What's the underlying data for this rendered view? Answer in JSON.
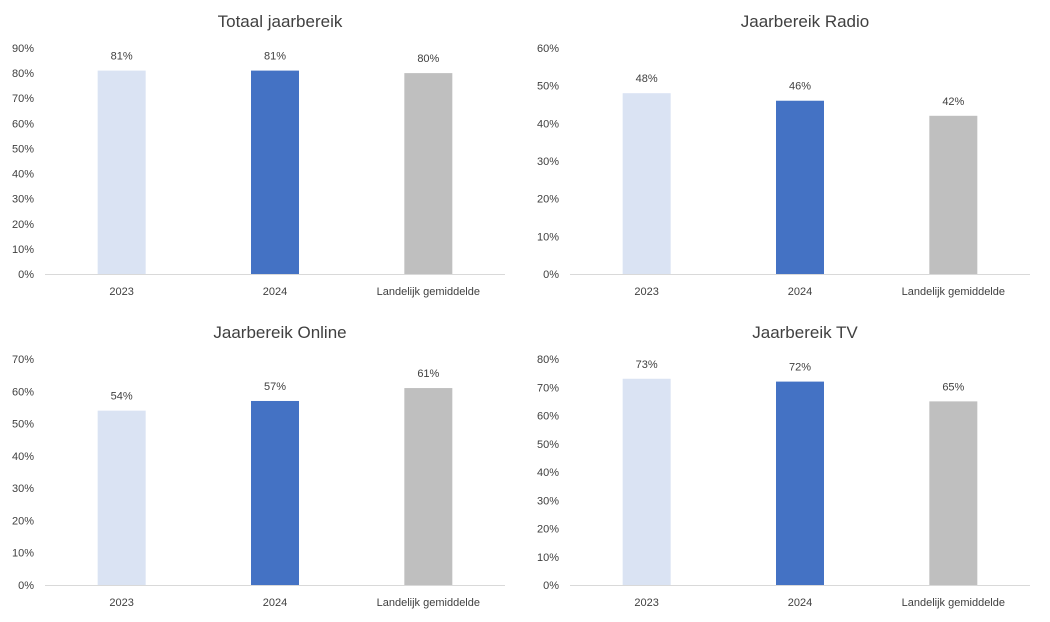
{
  "colors": {
    "c2023": "#dae3f3",
    "c2024": "#4472c4",
    "landelijk": "#bfbfbf",
    "axis": "#d9d9d9",
    "text": "#404040"
  },
  "chart_data": [
    {
      "type": "bar",
      "title": "Totaal jaarbereik",
      "categories": [
        "2023",
        "2024",
        "Landelijk gemiddelde"
      ],
      "values": [
        81,
        81,
        80
      ],
      "value_labels": [
        "81%",
        "81%",
        "80%"
      ],
      "ylim": [
        0,
        90
      ],
      "yticks": [
        "0%",
        "10%",
        "20%",
        "30%",
        "40%",
        "50%",
        "60%",
        "70%",
        "80%",
        "90%"
      ],
      "grid": false
    },
    {
      "type": "bar",
      "title": "Jaarbereik Radio",
      "categories": [
        "2023",
        "2024",
        "Landelijk gemiddelde"
      ],
      "values": [
        48,
        46,
        42
      ],
      "value_labels": [
        "48%",
        "46%",
        "42%"
      ],
      "ylim": [
        0,
        60
      ],
      "yticks": [
        "0%",
        "10%",
        "20%",
        "30%",
        "40%",
        "50%",
        "60%"
      ],
      "grid": false
    },
    {
      "type": "bar",
      "title": "Jaarbereik Online",
      "categories": [
        "2023",
        "2024",
        "Landelijk gemiddelde"
      ],
      "values": [
        54,
        57,
        61
      ],
      "value_labels": [
        "54%",
        "57%",
        "61%"
      ],
      "ylim": [
        0,
        70
      ],
      "yticks": [
        "0%",
        "10%",
        "20%",
        "30%",
        "40%",
        "50%",
        "60%",
        "70%"
      ],
      "grid": false
    },
    {
      "type": "bar",
      "title": "Jaarbereik TV",
      "categories": [
        "2023",
        "2024",
        "Landelijk gemiddelde"
      ],
      "values": [
        73,
        72,
        65
      ],
      "value_labels": [
        "73%",
        "72%",
        "65%"
      ],
      "ylim": [
        0,
        80
      ],
      "yticks": [
        "0%",
        "10%",
        "20%",
        "30%",
        "40%",
        "50%",
        "60%",
        "70%",
        "80%"
      ],
      "grid": false
    }
  ]
}
